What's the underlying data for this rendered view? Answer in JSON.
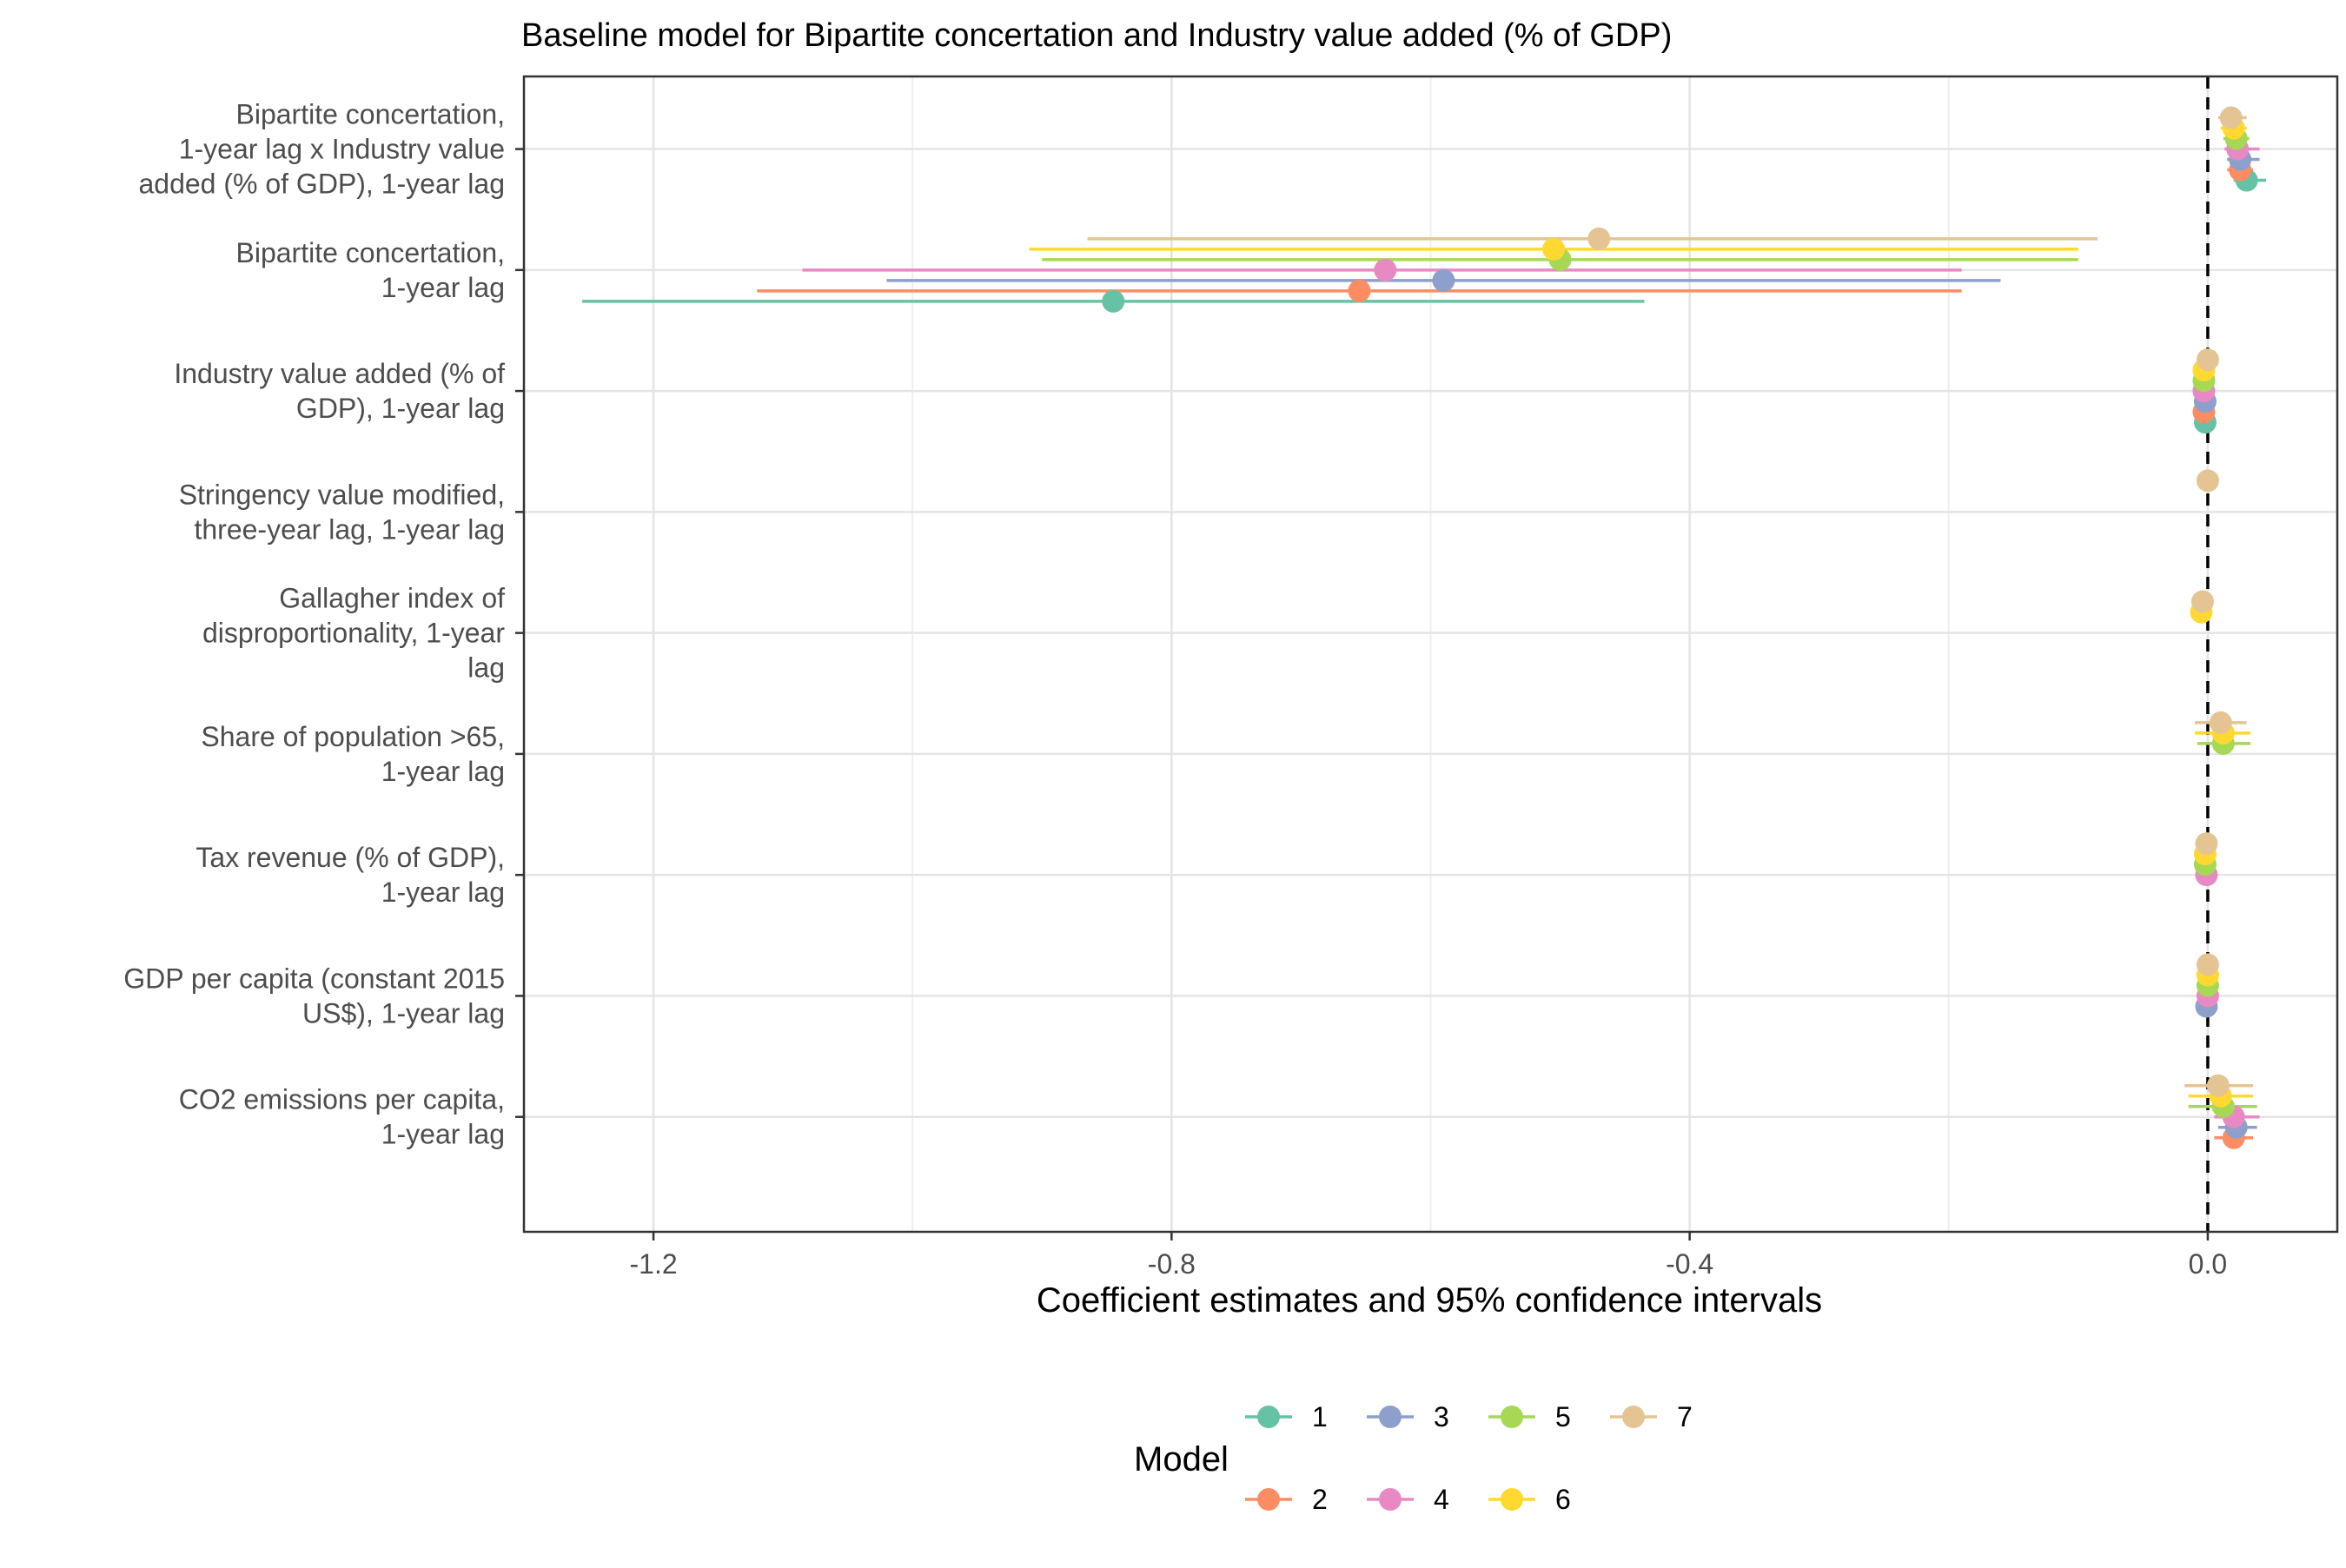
{
  "chart_data": {
    "type": "dot-and-whisker",
    "title": "Baseline model for Bipartite concertation and Industry value added (% of GDP)",
    "xlabel": "Coefficient estimates and 95% confidence intervals",
    "ylabel": "",
    "xlim": [
      -1.3,
      0.1
    ],
    "xticks": [
      -1.2,
      -0.8,
      -0.4,
      0.0
    ],
    "xtick_labels": [
      "-1.2",
      "-0.8",
      "-0.4",
      "0.0"
    ],
    "reference_line": 0,
    "grid": true,
    "legend": {
      "title": "Model",
      "position": "bottom"
    },
    "terms": [
      "Bipartite concertation,\n1-year lag x Industry value\nadded (% of GDP), 1-year lag",
      "Bipartite concertation,\n1-year lag",
      "Industry value added (% of\nGDP), 1-year lag",
      "Stringency value modified,\nthree-year lag, 1-year lag",
      "Gallagher index of\ndisproportionality, 1-year\nlag",
      "Share of population >65,\n1-year lag",
      "Tax revenue (% of GDP),\n1-year lag",
      "GDP per capita (constant 2015\nUS$), 1-year lag",
      "CO2 emissions per capita,\n1-year lag"
    ],
    "series": [
      {
        "name": "1",
        "color": "#66C2A5",
        "points": [
          {
            "term": 0,
            "estimate": 0.03,
            "low": 0.02,
            "high": 0.045
          },
          {
            "term": 1,
            "estimate": -0.845,
            "low": -1.255,
            "high": -0.435
          },
          {
            "term": 2,
            "estimate": -0.002,
            "low": -0.005,
            "high": 0.001
          }
        ]
      },
      {
        "name": "2",
        "color": "#FC8D62",
        "points": [
          {
            "term": 0,
            "estimate": 0.025,
            "low": 0.015,
            "high": 0.035
          },
          {
            "term": 1,
            "estimate": -0.655,
            "low": -1.12,
            "high": -0.19
          },
          {
            "term": 2,
            "estimate": -0.003,
            "low": -0.006,
            "high": 0.0
          },
          {
            "term": 8,
            "estimate": 0.02,
            "low": 0.005,
            "high": 0.035
          }
        ]
      },
      {
        "name": "3",
        "color": "#8DA0CB",
        "points": [
          {
            "term": 0,
            "estimate": 0.025,
            "low": 0.015,
            "high": 0.04
          },
          {
            "term": 1,
            "estimate": -0.59,
            "low": -1.02,
            "high": -0.16
          },
          {
            "term": 2,
            "estimate": -0.002,
            "low": -0.005,
            "high": 0.001
          },
          {
            "term": 7,
            "estimate": -0.001,
            "low": -0.003,
            "high": 0.001
          },
          {
            "term": 8,
            "estimate": 0.022,
            "low": 0.008,
            "high": 0.038
          }
        ]
      },
      {
        "name": "4",
        "color": "#E78AC3",
        "points": [
          {
            "term": 0,
            "estimate": 0.023,
            "low": 0.013,
            "high": 0.04
          },
          {
            "term": 1,
            "estimate": -0.635,
            "low": -1.085,
            "high": -0.19
          },
          {
            "term": 2,
            "estimate": -0.003,
            "low": -0.006,
            "high": 0.0
          },
          {
            "term": 6,
            "estimate": -0.001,
            "low": -0.004,
            "high": 0.002
          },
          {
            "term": 7,
            "estimate": 0.0,
            "low": -0.002,
            "high": 0.002
          },
          {
            "term": 8,
            "estimate": 0.02,
            "low": 0.005,
            "high": 0.04
          }
        ]
      },
      {
        "name": "5",
        "color": "#A6D854",
        "points": [
          {
            "term": 0,
            "estimate": 0.022,
            "low": 0.012,
            "high": 0.032
          },
          {
            "term": 1,
            "estimate": -0.5,
            "low": -0.9,
            "high": -0.1
          },
          {
            "term": 2,
            "estimate": -0.003,
            "low": -0.006,
            "high": 0.0
          },
          {
            "term": 5,
            "estimate": 0.012,
            "low": -0.008,
            "high": 0.033
          },
          {
            "term": 6,
            "estimate": -0.002,
            "low": -0.005,
            "high": 0.001
          },
          {
            "term": 7,
            "estimate": 0.0,
            "low": -0.002,
            "high": 0.002
          },
          {
            "term": 8,
            "estimate": 0.012,
            "low": -0.015,
            "high": 0.038
          }
        ]
      },
      {
        "name": "6",
        "color": "#FFD92F",
        "points": [
          {
            "term": 0,
            "estimate": 0.02,
            "low": 0.01,
            "high": 0.03
          },
          {
            "term": 1,
            "estimate": -0.505,
            "low": -0.91,
            "high": -0.1
          },
          {
            "term": 2,
            "estimate": -0.003,
            "low": -0.006,
            "high": 0.0
          },
          {
            "term": 4,
            "estimate": -0.005,
            "low": -0.007,
            "high": -0.003
          },
          {
            "term": 5,
            "estimate": 0.012,
            "low": -0.01,
            "high": 0.033
          },
          {
            "term": 6,
            "estimate": -0.002,
            "low": -0.005,
            "high": 0.001
          },
          {
            "term": 7,
            "estimate": 0.0,
            "low": -0.002,
            "high": 0.002
          },
          {
            "term": 8,
            "estimate": 0.01,
            "low": -0.015,
            "high": 0.035
          }
        ]
      },
      {
        "name": "7",
        "color": "#E5C494",
        "points": [
          {
            "term": 0,
            "estimate": 0.018,
            "low": 0.008,
            "high": 0.03
          },
          {
            "term": 1,
            "estimate": -0.47,
            "low": -0.865,
            "high": -0.085
          },
          {
            "term": 2,
            "estimate": 0.0,
            "low": -0.003,
            "high": 0.003
          },
          {
            "term": 3,
            "estimate": 0.0,
            "low": -0.002,
            "high": 0.002
          },
          {
            "term": 4,
            "estimate": -0.004,
            "low": -0.006,
            "high": -0.002
          },
          {
            "term": 5,
            "estimate": 0.01,
            "low": -0.01,
            "high": 0.03
          },
          {
            "term": 6,
            "estimate": -0.001,
            "low": -0.004,
            "high": 0.002
          },
          {
            "term": 7,
            "estimate": 0.0,
            "low": -0.002,
            "high": 0.002
          },
          {
            "term": 8,
            "estimate": 0.008,
            "low": -0.018,
            "high": 0.035
          }
        ]
      }
    ]
  }
}
